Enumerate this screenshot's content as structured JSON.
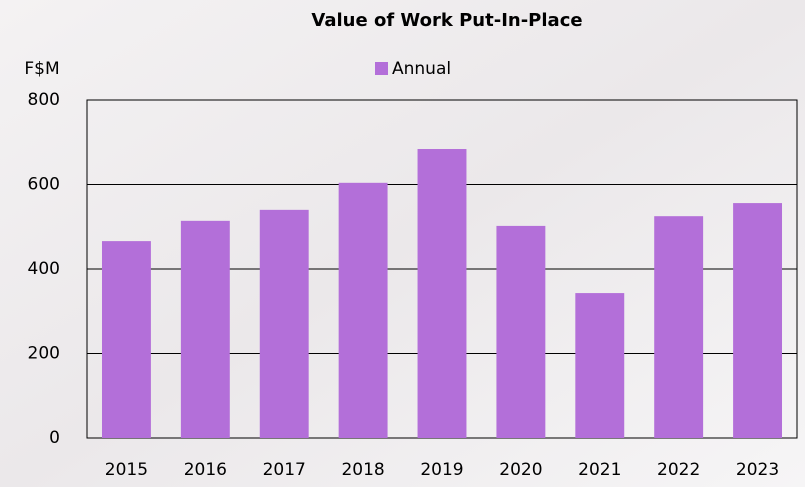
{
  "chart_data": {
    "type": "bar",
    "title": "Value of Work Put-In-Place",
    "y_label": "F$M",
    "categories": [
      "2015",
      "2016",
      "2017",
      "2018",
      "2019",
      "2020",
      "2021",
      "2022",
      "2023"
    ],
    "series": [
      {
        "name": "Annual",
        "color": "#b36fd9",
        "values": [
          466,
          514,
          540,
          604,
          684,
          502,
          343,
          525,
          556
        ]
      }
    ],
    "ylim": [
      0,
      800
    ],
    "yticks": [
      0,
      200,
      400,
      600,
      800
    ],
    "grid": true,
    "legend": "top"
  }
}
